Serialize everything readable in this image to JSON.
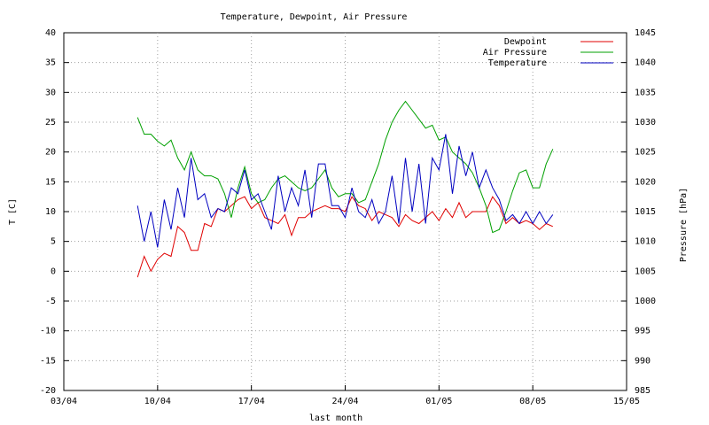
{
  "chart_data": {
    "type": "line",
    "title": "Temperature, Dewpoint, Air Pressure",
    "xlabel": "last month",
    "ylabel": "T [C]",
    "y2label": "Pressure [hPa]",
    "x": [
      5.5,
      6,
      6.5,
      7,
      7.5,
      8,
      8.5,
      9,
      9.5,
      10,
      10.5,
      11,
      11.5,
      12,
      12.5,
      13,
      13.5,
      14,
      14.5,
      15,
      15.5,
      16,
      16.5,
      17,
      17.5,
      18,
      18.5,
      19,
      19.5,
      20,
      20.5,
      21,
      21.5,
      22,
      22.5,
      23,
      23.5,
      24,
      24.5,
      25,
      25.5,
      26,
      26.5,
      27,
      27.5,
      28,
      28.5,
      29,
      29.5,
      30,
      30.5,
      31,
      31.5,
      32,
      32.5,
      33,
      33.5,
      34,
      34.5,
      35,
      35.5,
      36,
      36.5
    ],
    "xlim": [
      0,
      42
    ],
    "xticks": [
      {
        "value": 0,
        "label": "03/04"
      },
      {
        "value": 7,
        "label": "10/04"
      },
      {
        "value": 14,
        "label": "17/04"
      },
      {
        "value": 21,
        "label": "24/04"
      },
      {
        "value": 28,
        "label": "01/05"
      },
      {
        "value": 35,
        "label": "08/05"
      },
      {
        "value": 42,
        "label": "15/05"
      }
    ],
    "ylim": [
      -20,
      40
    ],
    "yticks": [
      -20,
      -15,
      -10,
      -5,
      0,
      5,
      10,
      15,
      20,
      25,
      30,
      35,
      40
    ],
    "y2lim": [
      985,
      1045
    ],
    "y2ticks": [
      985,
      990,
      995,
      1000,
      1005,
      1010,
      1015,
      1020,
      1025,
      1030,
      1035,
      1040,
      1045
    ],
    "grid": true,
    "legend": "top-right",
    "series": [
      {
        "name": "Dewpoint",
        "color": "#e00000",
        "values": [
          -1,
          2.5,
          0,
          2,
          3,
          2.5,
          7.5,
          6.5,
          3.5,
          3.5,
          8,
          7.5,
          10.5,
          10,
          11,
          12,
          12.5,
          10.5,
          11.5,
          9,
          8.5,
          8,
          9.5,
          6,
          9,
          9,
          10,
          10.5,
          11,
          10.5,
          10.5,
          10,
          12.5,
          11,
          10.5,
          8.5,
          10,
          9.5,
          9,
          7.5,
          9.5,
          8.5,
          8,
          9,
          10,
          8.5,
          10.5,
          9,
          11.5,
          9,
          10,
          10,
          10,
          12.5,
          11,
          8,
          9,
          8,
          8.5,
          8,
          7,
          8,
          7.5
        ]
      },
      {
        "name": "Air Pressure",
        "color": "#00a000",
        "axis": "y2",
        "values": [
          1030.8,
          1028,
          1028,
          1026.8,
          1026,
          1027,
          1024,
          1022,
          1025,
          1022,
          1021,
          1021,
          1020.5,
          1018,
          1014,
          1019,
          1022.5,
          1018,
          1016.5,
          1017,
          1019,
          1020.5,
          1021,
          1020,
          1019,
          1018.5,
          1019,
          1020.5,
          1022,
          1019,
          1017.5,
          1018,
          1018,
          1016.5,
          1017,
          1020,
          1023,
          1027,
          1030,
          1032,
          1033.5,
          1032,
          1030.5,
          1029,
          1029.5,
          1027,
          1027.5,
          1025,
          1024,
          1023,
          1021.5,
          1019,
          1016,
          1011.5,
          1012,
          1015,
          1018.5,
          1021.5,
          1022,
          1019,
          1019,
          1023,
          1025.5
        ]
      },
      {
        "name": "Temperature",
        "color": "#0000c0",
        "values": [
          11,
          5,
          10,
          4,
          12,
          7,
          14,
          9,
          19,
          12,
          13,
          9,
          10.5,
          10,
          14,
          13,
          17,
          12,
          13,
          10,
          7,
          16,
          10,
          14,
          11,
          17,
          9,
          18,
          18,
          11,
          11,
          9,
          14,
          10,
          9,
          12,
          8,
          10,
          16,
          8,
          19,
          10,
          18,
          8,
          19,
          17,
          23,
          13,
          21,
          16,
          20,
          14,
          17,
          14,
          12,
          8.5,
          9.5,
          8,
          10,
          8,
          10,
          8,
          9.5
        ]
      }
    ]
  }
}
